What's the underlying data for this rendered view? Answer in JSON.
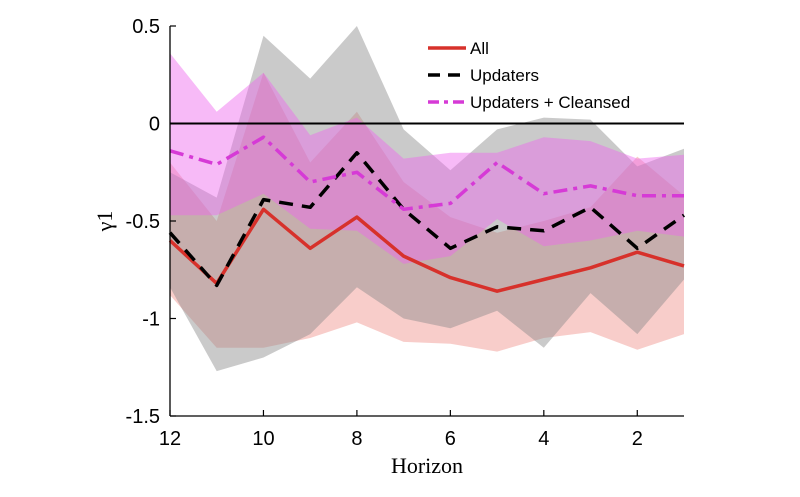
{
  "chart_data": {
    "type": "line",
    "xlabel": "Horizon",
    "ylabel": "γ1",
    "xlim": [
      12,
      1
    ],
    "ylim": [
      -1.5,
      0.5
    ],
    "x_reversed": true,
    "x_ticks": [
      12,
      10,
      8,
      6,
      4,
      2
    ],
    "y_ticks": [
      -1.5,
      -1,
      -0.5,
      0,
      0.5
    ],
    "x_tick_labels": [
      "12",
      "10",
      "8",
      "6",
      "4",
      "2"
    ],
    "y_tick_labels": [
      "-1.5",
      "-1",
      "-0.5",
      "0",
      "0.5"
    ],
    "x": [
      12,
      11,
      10,
      9,
      8,
      7,
      6,
      5,
      4,
      3,
      2,
      1
    ],
    "reference_line": 0,
    "legend_position": "top-right",
    "series": [
      {
        "name": "All",
        "color": "#d7312b",
        "dash": "solid",
        "values": [
          -0.6,
          -0.82,
          -0.44,
          -0.64,
          -0.48,
          -0.68,
          -0.79,
          -0.86,
          -0.8,
          -0.74,
          -0.66,
          -0.73
        ],
        "band_lower": [
          -0.88,
          -1.15,
          -1.15,
          -1.1,
          -1.02,
          -1.12,
          -1.13,
          -1.17,
          -1.1,
          -1.07,
          -1.16,
          -1.08
        ],
        "band_upper": [
          -0.2,
          -0.5,
          0.26,
          -0.2,
          0.06,
          -0.3,
          -0.48,
          -0.56,
          -0.5,
          -0.43,
          -0.17,
          -0.37
        ],
        "band_color": "#f0908a"
      },
      {
        "name": "Updaters",
        "color": "#000000",
        "dash": "dashed",
        "values": [
          -0.56,
          -0.83,
          -0.39,
          -0.43,
          -0.15,
          -0.44,
          -0.64,
          -0.53,
          -0.55,
          -0.43,
          -0.64,
          -0.47
        ],
        "band_lower": [
          -0.84,
          -1.27,
          -1.2,
          -1.08,
          -0.84,
          -1.0,
          -1.05,
          -0.96,
          -1.15,
          -0.87,
          -1.08,
          -0.8
        ],
        "band_upper": [
          -0.25,
          -0.38,
          0.45,
          0.23,
          0.5,
          -0.03,
          -0.24,
          -0.03,
          0.03,
          0.02,
          -0.22,
          -0.13
        ],
        "band_color": "#8a8a8a"
      },
      {
        "name": "Updaters + Cleansed",
        "color": "#d63ad6",
        "dash": "dashdot",
        "values": [
          -0.14,
          -0.21,
          -0.07,
          -0.3,
          -0.25,
          -0.44,
          -0.41,
          -0.2,
          -0.36,
          -0.32,
          -0.37,
          -0.37
        ],
        "band_lower": [
          -0.47,
          -0.47,
          -0.36,
          -0.54,
          -0.55,
          -0.72,
          -0.68,
          -0.49,
          -0.63,
          -0.6,
          -0.55,
          -0.58
        ],
        "band_upper": [
          0.36,
          0.06,
          0.26,
          -0.06,
          0.03,
          -0.18,
          -0.15,
          -0.15,
          -0.07,
          -0.09,
          -0.18,
          -0.16
        ],
        "band_color": "#ee66ee"
      }
    ]
  }
}
